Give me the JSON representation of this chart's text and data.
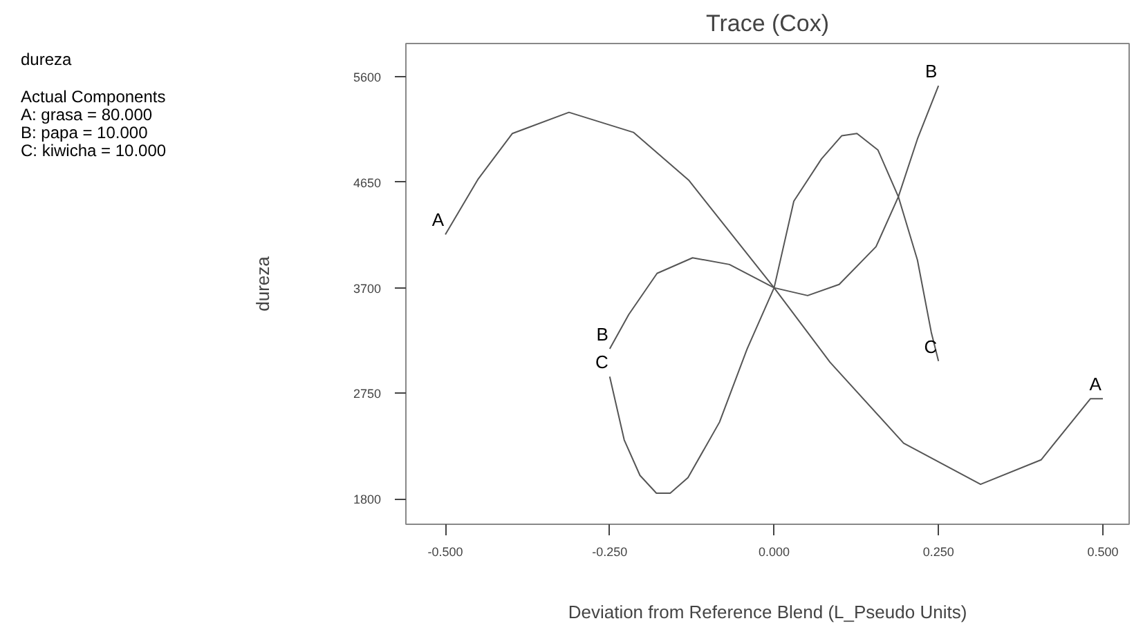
{
  "chart_data": {
    "type": "line",
    "title": "Trace (Cox)",
    "xlabel": "Deviation from Reference Blend (L_Pseudo Units)",
    "ylabel": "dureza",
    "annotations": [
      "dureza",
      "Actual Components",
      "A: grasa = 80.000",
      "B: papa = 10.000",
      "C: kiwicha = 10.000"
    ],
    "xlim": [
      -0.56,
      0.54
    ],
    "ylim": [
      1570,
      5900
    ],
    "xticks": [
      {
        "value": -0.5,
        "label": "-0.500"
      },
      {
        "value": -0.25,
        "label": "-0.250"
      },
      {
        "value": 0,
        "label": "0.000"
      },
      {
        "value": 0.25,
        "label": "0.250"
      },
      {
        "value": 0.5,
        "label": "0.500"
      }
    ],
    "yticks": [
      1800,
      2750,
      3700,
      4650,
      5600
    ],
    "grid": false,
    "marker": "none",
    "line_style": "solid",
    "series": [
      {
        "name": "A",
        "color": "#555555",
        "x": [
          -0.5,
          -0.45,
          -0.398,
          -0.312,
          -0.214,
          -0.13,
          0,
          0.085,
          0.197,
          0.314,
          0.406,
          0.481,
          0.5
        ],
        "values": [
          4180,
          4680,
          5090,
          5280,
          5100,
          4670,
          3700,
          3030,
          2300,
          1930,
          2150,
          2700,
          2700
        ]
      },
      {
        "name": "B",
        "color": "#555555",
        "x": [
          -0.25,
          -0.221,
          -0.178,
          -0.124,
          -0.068,
          0,
          0.051,
          0.099,
          0.155,
          0.189,
          0.218,
          0.25
        ],
        "values": [
          3150,
          3460,
          3830,
          3970,
          3910,
          3700,
          3630,
          3730,
          4070,
          4520,
          5040,
          5520
        ]
      },
      {
        "name": "C",
        "color": "#555555",
        "x": [
          -0.25,
          -0.228,
          -0.204,
          -0.179,
          -0.158,
          -0.131,
          -0.083,
          -0.041,
          0,
          0.03,
          0.072,
          0.103,
          0.126,
          0.158,
          0.189,
          0.218,
          0.239,
          0.25
        ],
        "values": [
          2900,
          2330,
          2010,
          1850,
          1850,
          1990,
          2490,
          3150,
          3700,
          4480,
          4860,
          5070,
          5090,
          4940,
          4520,
          3950,
          3300,
          3040
        ]
      }
    ]
  }
}
